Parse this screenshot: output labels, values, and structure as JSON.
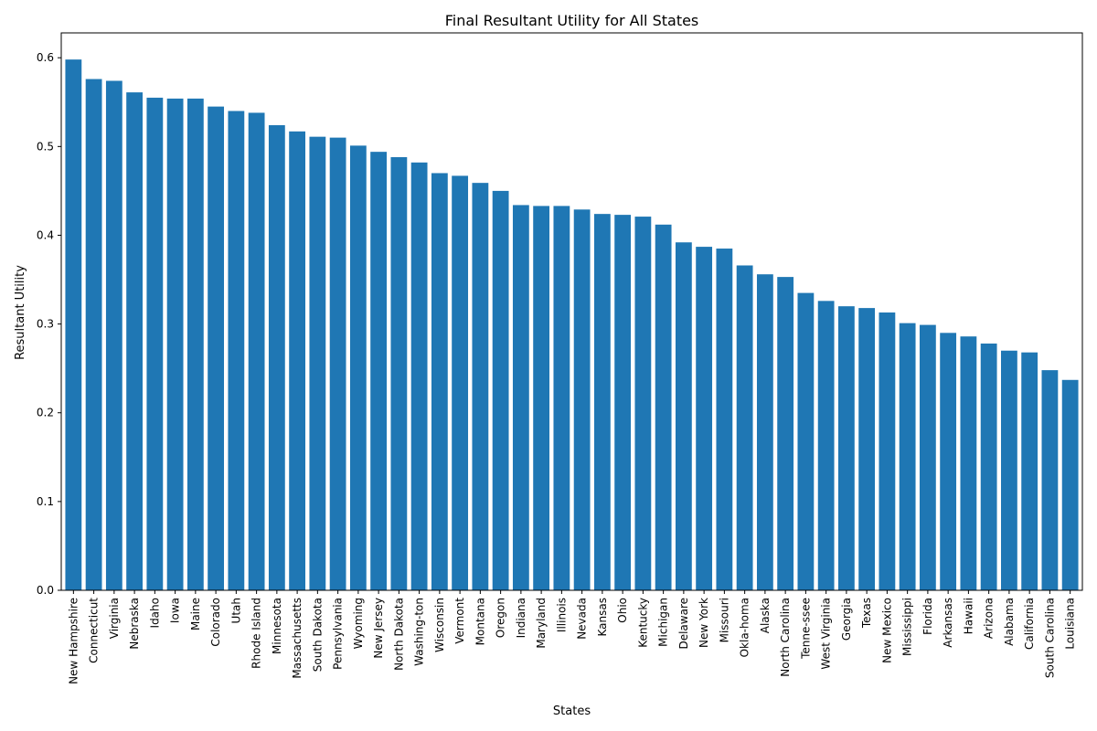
{
  "chart_data": {
    "type": "bar",
    "title": "Final Resultant Utility for All States",
    "xlabel": "States",
    "ylabel": "Resultant Utility",
    "ylim": [
      0,
      0.628
    ],
    "yticks": [
      0.0,
      0.1,
      0.2,
      0.3,
      0.4,
      0.5,
      0.6
    ],
    "ytick_labels": [
      "0.0",
      "0.1",
      "0.2",
      "0.3",
      "0.4",
      "0.5",
      "0.6"
    ],
    "grid": false,
    "bar_color": "#1f77b4",
    "categories": [
      "New Hampshire",
      "Connecticut",
      "Virginia",
      "Nebraska",
      "Idaho",
      "Iowa",
      "Maine",
      "Colorado",
      "Utah",
      "Rhode Island",
      "Minnesota",
      "Massachusetts",
      "South Dakota",
      "Pennsylvania",
      "Wyoming",
      "New Jersey",
      "North Dakota",
      "Washing-ton",
      "Wisconsin",
      "Vermont",
      "Montana",
      "Oregon",
      "Indiana",
      "Maryland",
      "Illinois",
      "Nevada",
      "Kansas",
      "Ohio",
      "Kentucky",
      "Michigan",
      "Delaware",
      "New York",
      "Missouri",
      "Okla-homa",
      "Alaska",
      "North Carolina",
      "Tenne-ssee",
      "West Virginia",
      "Georgia",
      "Texas",
      "New Mexico",
      "Mississippi",
      "Florida",
      "Arkansas",
      "Hawaii",
      "Arizona",
      "Alabama",
      "California",
      "South Carolina",
      "Louisiana"
    ],
    "values": [
      0.598,
      0.576,
      0.574,
      0.561,
      0.555,
      0.554,
      0.554,
      0.545,
      0.54,
      0.538,
      0.524,
      0.517,
      0.511,
      0.51,
      0.501,
      0.494,
      0.488,
      0.482,
      0.47,
      0.467,
      0.459,
      0.45,
      0.434,
      0.433,
      0.433,
      0.429,
      0.424,
      0.423,
      0.421,
      0.412,
      0.392,
      0.387,
      0.385,
      0.366,
      0.356,
      0.353,
      0.335,
      0.326,
      0.32,
      0.318,
      0.313,
      0.301,
      0.299,
      0.29,
      0.286,
      0.278,
      0.27,
      0.268,
      0.248,
      0.237
    ]
  }
}
